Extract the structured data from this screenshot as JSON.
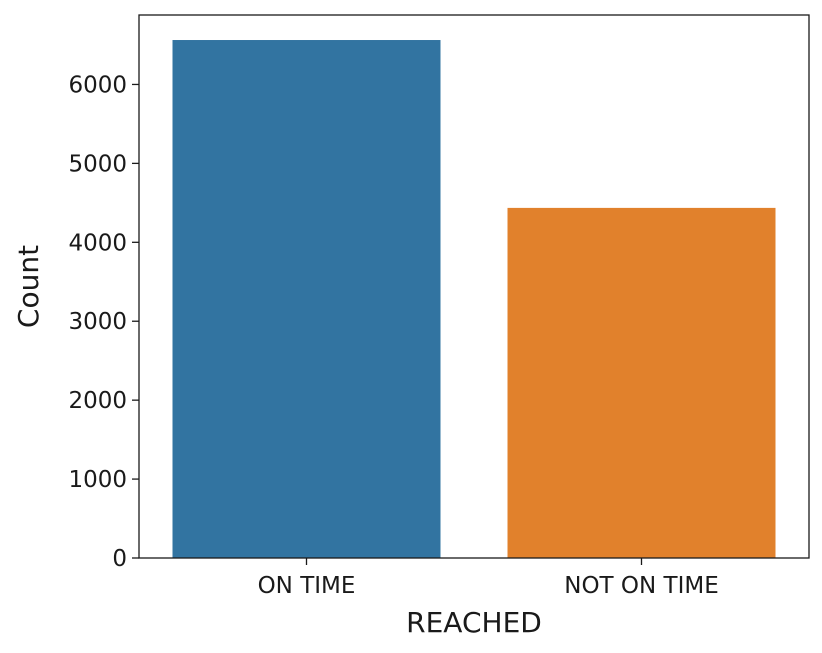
{
  "chart_data": {
    "type": "bar",
    "title": "",
    "xlabel": "REACHED",
    "ylabel": "Count",
    "categories": [
      "ON TIME",
      "NOT ON TIME"
    ],
    "values": [
      6563,
      4436
    ],
    "colors": [
      "#3274a1",
      "#e1812c"
    ],
    "ylim": [
      0,
      6880
    ],
    "yticks": [
      0,
      1000,
      2000,
      3000,
      4000,
      5000,
      6000
    ],
    "grid": false,
    "legend": "none"
  }
}
